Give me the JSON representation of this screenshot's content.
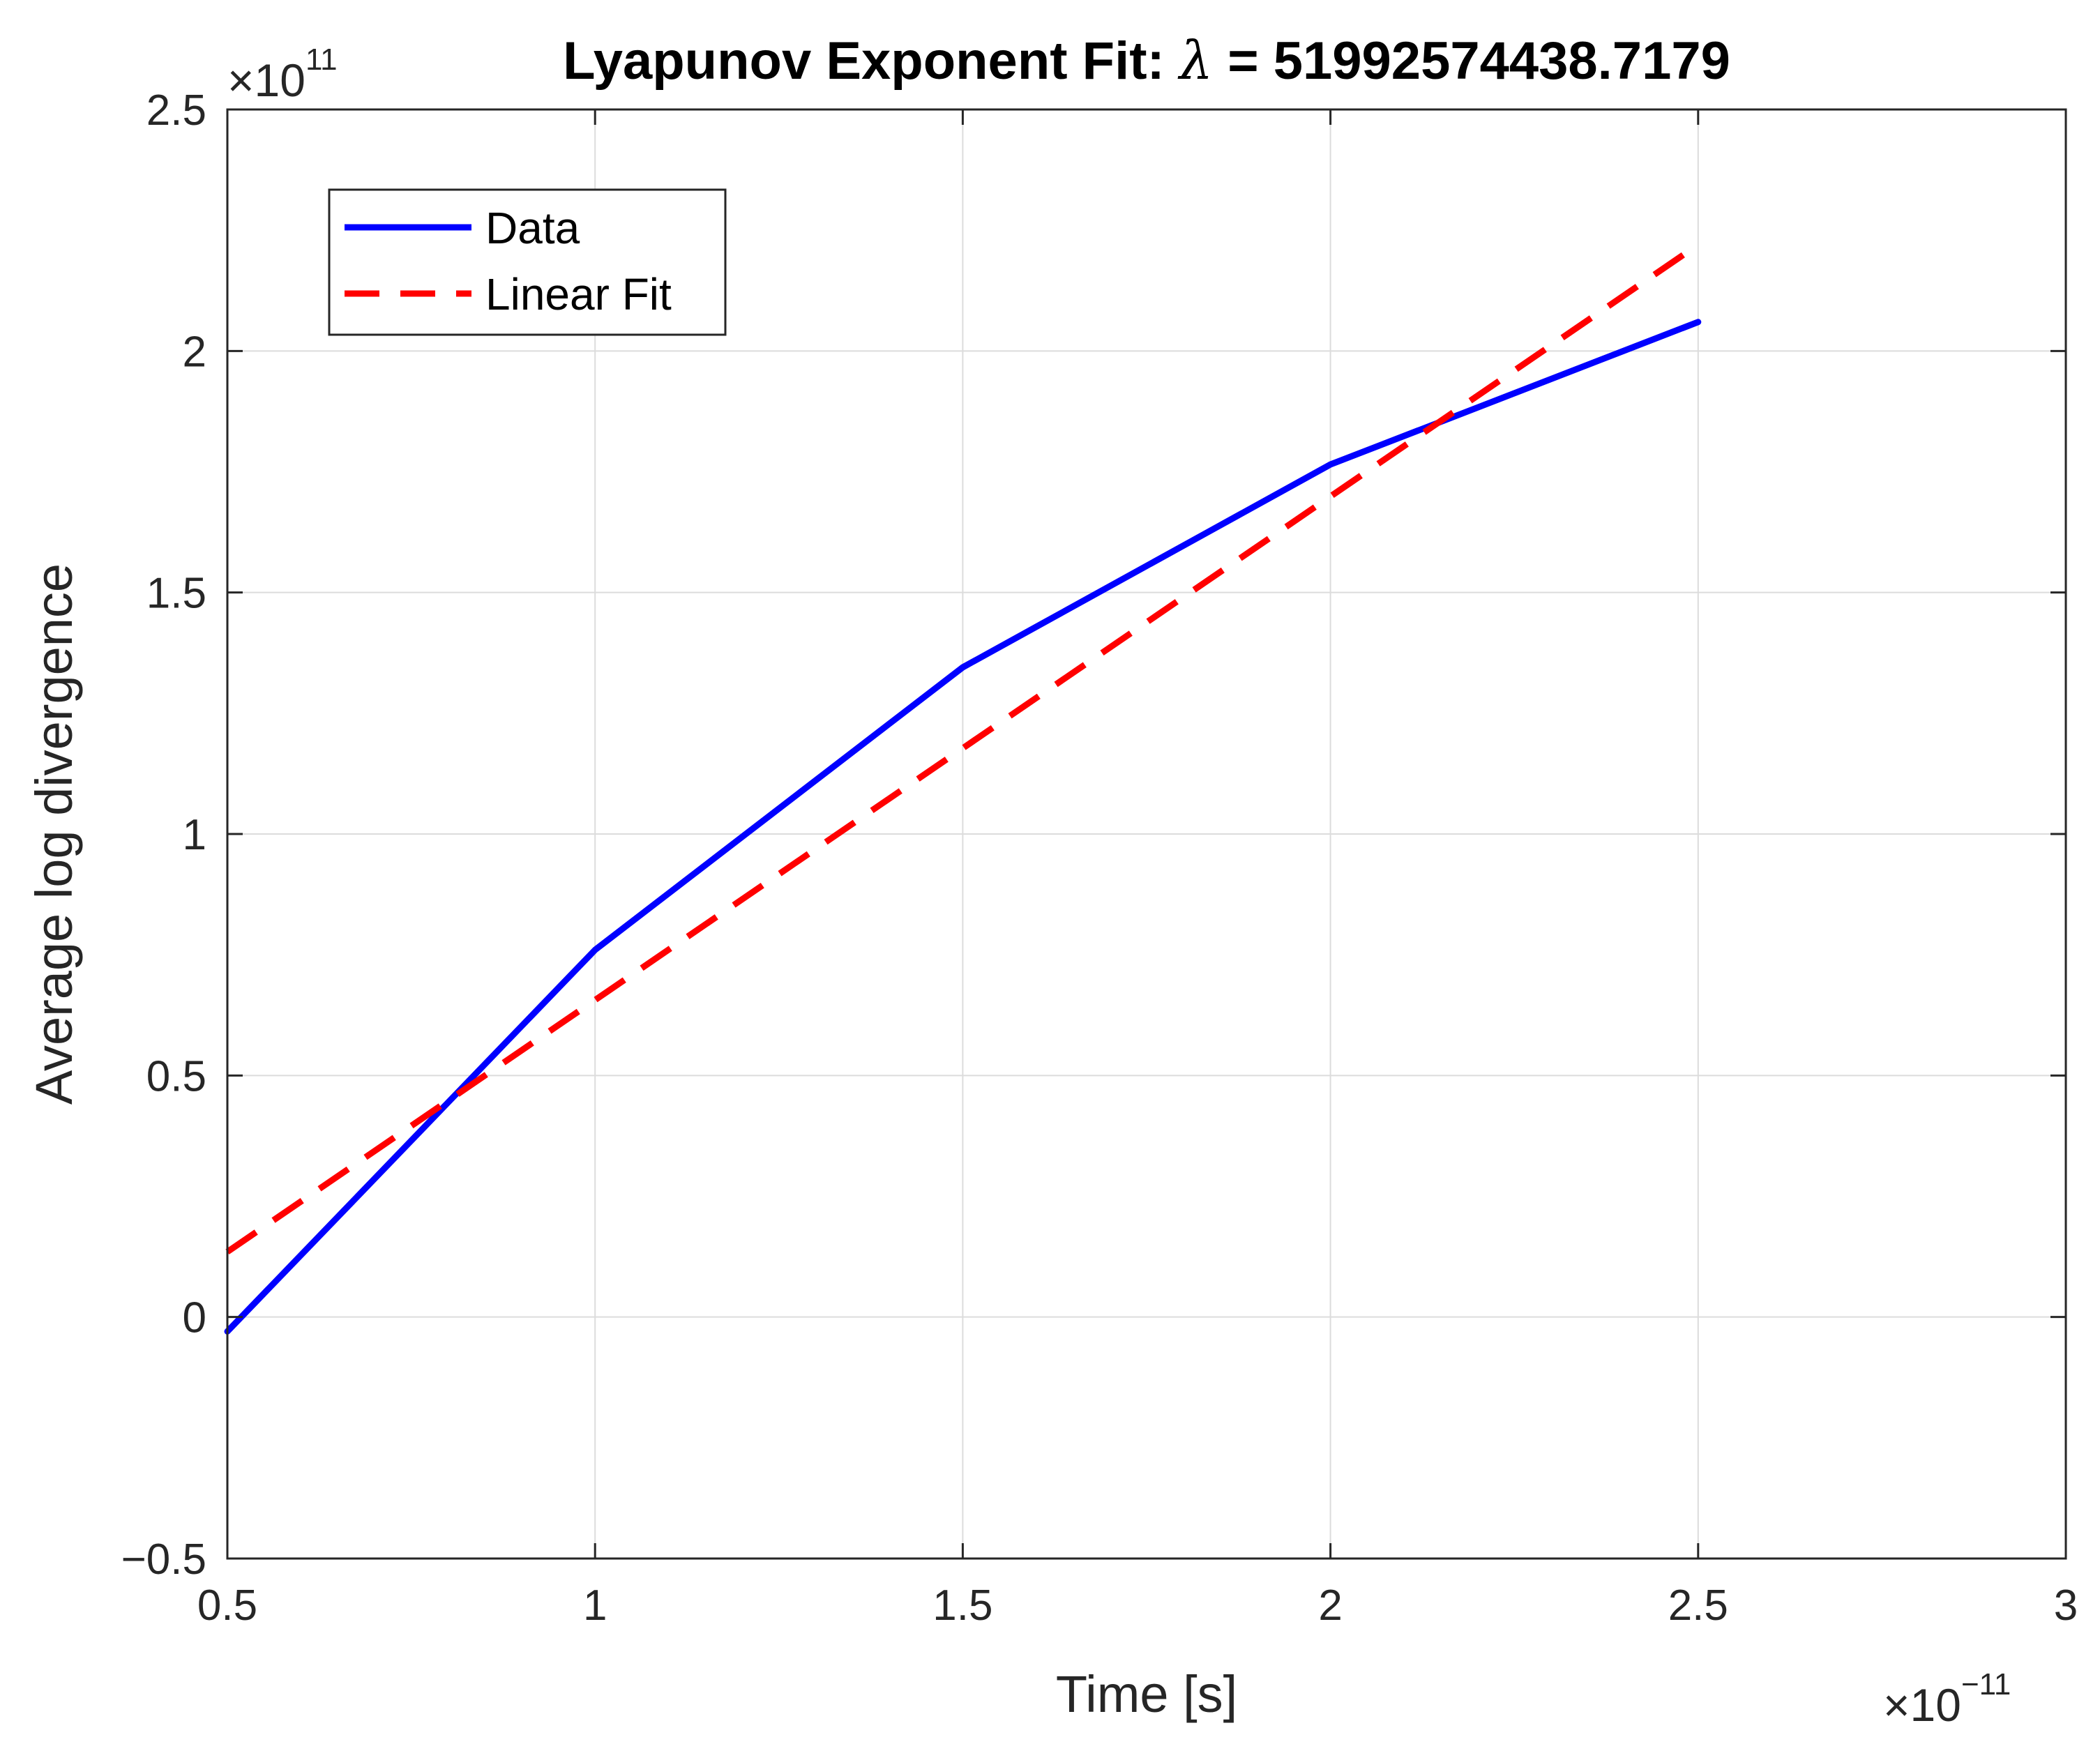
{
  "chart_data": {
    "type": "line",
    "title_prefix": "Lyapunov Exponent Fit: ",
    "title_symbol": "λ",
    "title_suffix": " = 51992574438.7179",
    "xlabel": "Time [s]",
    "ylabel": "Average log divergence",
    "x_multiplier": {
      "base": "×10",
      "exponent": "−11"
    },
    "y_multiplier": {
      "base": "×10",
      "exponent": "11"
    },
    "xlim": [
      0.5,
      3
    ],
    "ylim": [
      -0.5,
      2.5
    ],
    "xticks": [
      0.5,
      1,
      1.5,
      2,
      2.5,
      3
    ],
    "xtick_labels": [
      "0.5",
      "1",
      "1.5",
      "2",
      "2.5",
      "3"
    ],
    "yticks": [
      -0.5,
      0,
      0.5,
      1,
      1.5,
      2,
      2.5
    ],
    "ytick_labels": [
      "−0.5",
      "0",
      "0.5",
      "1",
      "1.5",
      "2",
      "2.5"
    ],
    "grid": true,
    "legend_position": "top-left",
    "series": [
      {
        "name": "Data",
        "style": "solid",
        "color": "#0000FF",
        "x": [
          0.5,
          1,
          1.5,
          2,
          2.5
        ],
        "y": [
          -0.03,
          0.76,
          1.345,
          1.765,
          2.06
        ]
      },
      {
        "name": "Linear Fit",
        "style": "dashed",
        "color": "#FF0000",
        "x": [
          0.5,
          2.5
        ],
        "y": [
          0.135,
          2.22
        ]
      }
    ]
  }
}
